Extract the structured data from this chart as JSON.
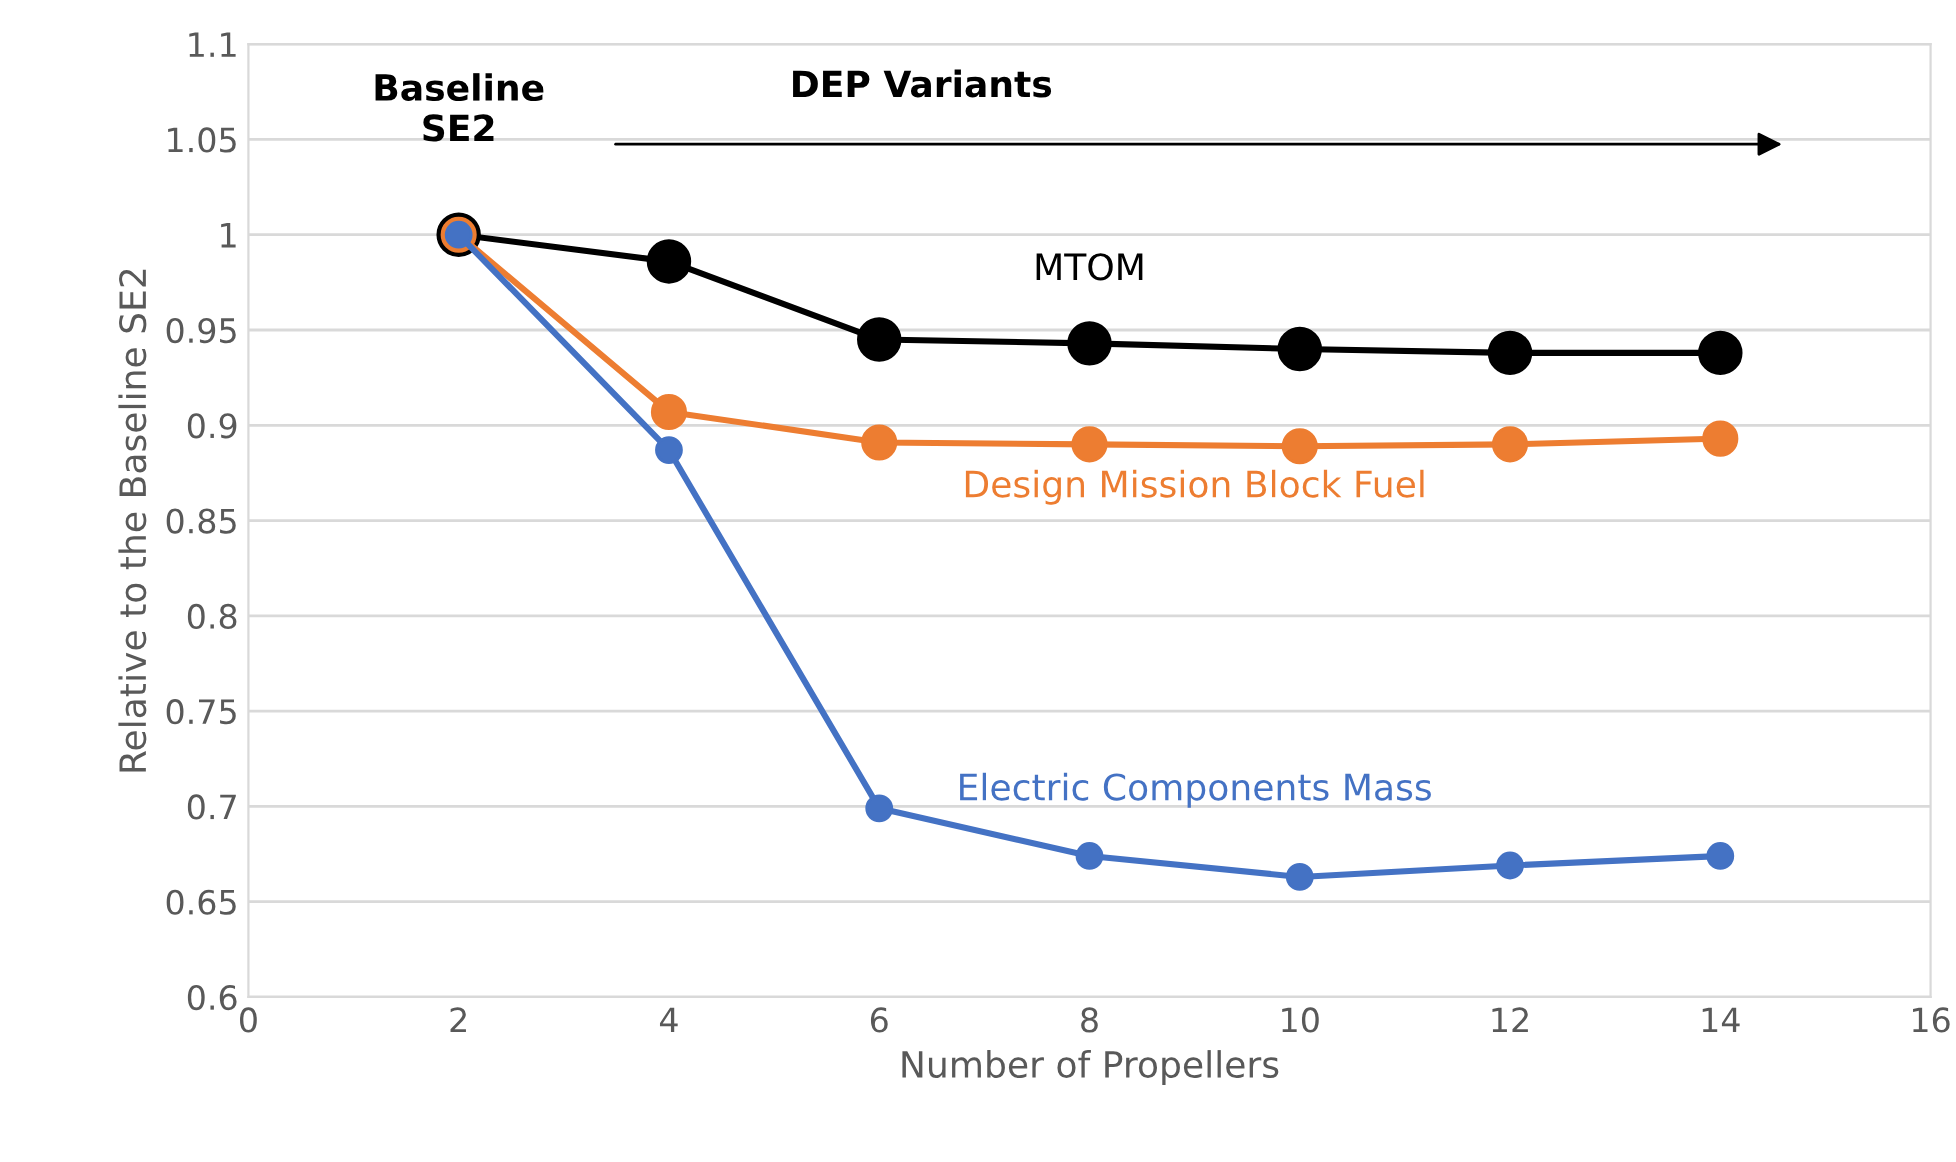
{
  "chart_data": {
    "type": "line",
    "xlabel": "Number of Propellers",
    "ylabel": "Relative to the Baseline SE2",
    "x": [
      2,
      4,
      6,
      8,
      10,
      12,
      14
    ],
    "series": [
      {
        "name": "MTOM",
        "color": "#000000",
        "values": [
          1.0,
          0.986,
          0.945,
          0.943,
          0.94,
          0.938,
          0.938
        ]
      },
      {
        "name": "Design Mission Block Fuel",
        "color": "#ed7d31",
        "values": [
          1.0,
          0.907,
          0.891,
          0.89,
          0.889,
          0.89,
          0.893
        ]
      },
      {
        "name": "Electric Components Mass",
        "color": "#4472c4",
        "values": [
          1.0,
          0.887,
          0.699,
          0.674,
          0.663,
          0.669,
          0.674
        ]
      }
    ],
    "xlim": [
      0,
      16
    ],
    "xticks": [
      0,
      2,
      4,
      6,
      8,
      10,
      12,
      14,
      16
    ],
    "ylim": [
      0.6,
      1.1
    ],
    "yticks": [
      {
        "value": 0.6,
        "label": "0.6"
      },
      {
        "value": 0.65,
        "label": "0.65"
      },
      {
        "value": 0.7,
        "label": "0.7"
      },
      {
        "value": 0.75,
        "label": "0.75"
      },
      {
        "value": 0.8,
        "label": "0.8"
      },
      {
        "value": 0.85,
        "label": "0.85"
      },
      {
        "value": 0.9,
        "label": "0.9"
      },
      {
        "value": 0.95,
        "label": "0.95"
      },
      {
        "value": 1.0,
        "label": "1"
      },
      {
        "value": 1.05,
        "label": "1.05"
      },
      {
        "value": 1.1,
        "label": "1.1"
      }
    ],
    "annotations": [
      "Baseline\nSE2",
      "DEP Variants"
    ],
    "grid": "y",
    "legend": false,
    "marker": "circle",
    "line_style": "solid"
  }
}
